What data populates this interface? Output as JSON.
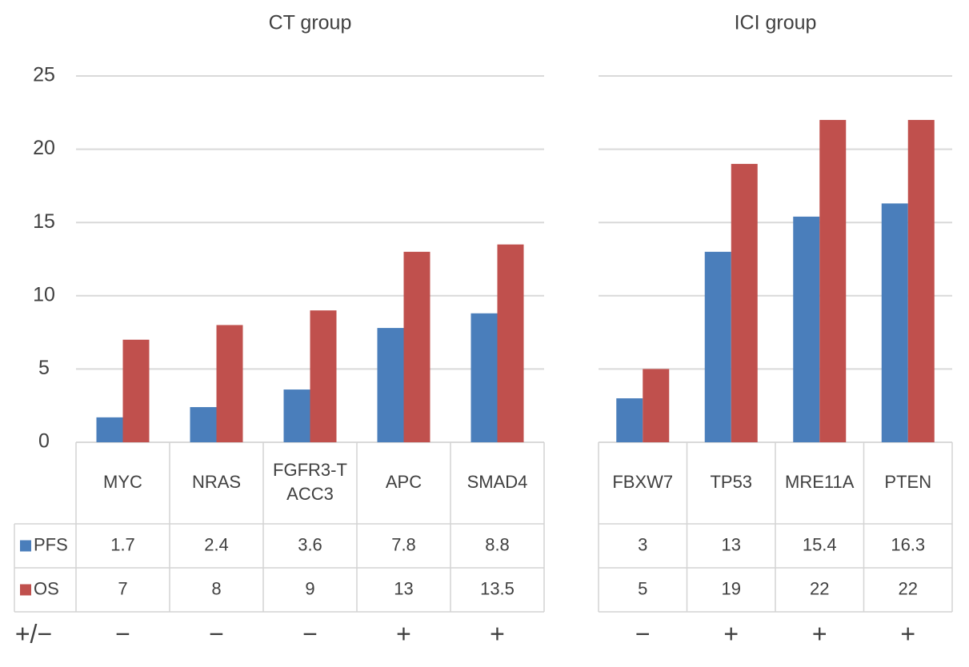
{
  "chart_data": [
    {
      "type": "bar",
      "title": "CT group",
      "categories": [
        "MYC",
        "NRAS",
        "FGFR3-TACC3",
        "APC",
        "SMAD4"
      ],
      "series": [
        {
          "name": "PFS",
          "color": "#4a7ebb",
          "values": [
            1.7,
            2.4,
            3.6,
            7.8,
            8.8
          ]
        },
        {
          "name": "OS",
          "color": "#c0504d",
          "values": [
            7,
            8,
            9,
            13,
            13.5
          ]
        }
      ],
      "ylim": [
        0,
        25
      ],
      "yticks": [
        0,
        5,
        10,
        15,
        20,
        25
      ],
      "grid": true,
      "show_ytick_labels": true,
      "signs_label": "+/−",
      "signs": [
        "−",
        "−",
        "−",
        "+",
        "+"
      ]
    },
    {
      "type": "bar",
      "title": "ICI group",
      "categories": [
        "FBXW7",
        "TP53",
        "MRE11A",
        "PTEN"
      ],
      "series": [
        {
          "color": "#4a7ebb",
          "values": [
            3,
            13,
            15.4,
            16.3
          ]
        },
        {
          "color": "#c0504d",
          "values": [
            5,
            19,
            22,
            22
          ]
        }
      ],
      "ylim": [
        0,
        25
      ],
      "yticks": [
        0,
        5,
        10,
        15,
        20,
        25
      ],
      "grid": true,
      "show_ytick_labels": false,
      "signs": [
        "−",
        "+",
        "+",
        "+"
      ]
    }
  ]
}
